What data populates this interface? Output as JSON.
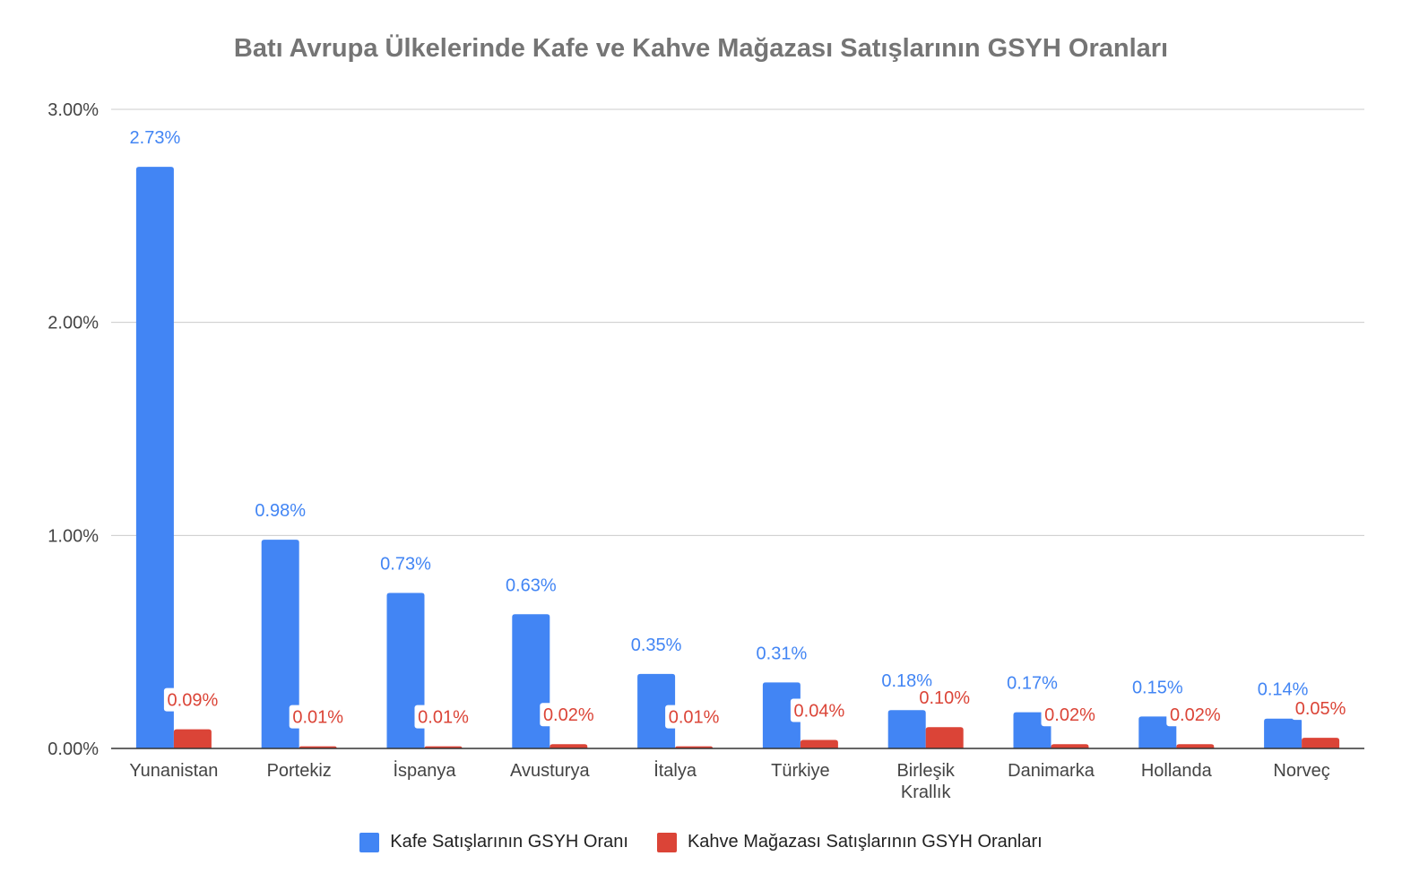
{
  "chart_data": {
    "type": "bar",
    "title": "Batı Avrupa Ülkelerinde Kafe ve Kahve Mağazası Satışlarının GSYH Oranları",
    "categories": [
      [
        "Yunanistan"
      ],
      [
        "Portekiz"
      ],
      [
        "İspanya"
      ],
      [
        "Avusturya"
      ],
      [
        "İtalya"
      ],
      [
        "Türkiye"
      ],
      [
        "Birleşik",
        "Krallık"
      ],
      [
        "Danimarka"
      ],
      [
        "Hollanda"
      ],
      [
        "Norveç"
      ]
    ],
    "series": [
      {
        "name": "Kafe Satışlarının GSYH Oranı",
        "color": "#4285f4",
        "values": [
          2.73,
          0.98,
          0.73,
          0.63,
          0.35,
          0.31,
          0.18,
          0.17,
          0.15,
          0.14
        ],
        "labels": [
          "2.73%",
          "0.98%",
          "0.73%",
          "0.63%",
          "0.35%",
          "0.31%",
          "0.18%",
          "0.17%",
          "0.15%",
          "0.14%"
        ]
      },
      {
        "name": "Kahve Mağazası Satışlarının GSYH Oranları",
        "color": "#db4437",
        "values": [
          0.09,
          0.01,
          0.01,
          0.02,
          0.01,
          0.04,
          0.1,
          0.02,
          0.02,
          0.05
        ],
        "labels": [
          "0.09%",
          "0.01%",
          "0.01%",
          "0.02%",
          "0.01%",
          "0.04%",
          "0.10%",
          "0.02%",
          "0.02%",
          "0.05%"
        ]
      }
    ],
    "ylim": [
      0,
      3
    ],
    "yticks": [
      0,
      1,
      2,
      3
    ],
    "ytick_labels": [
      "0.00%",
      "1.00%",
      "2.00%",
      "3.00%"
    ],
    "grid": true,
    "legend_position": "bottom"
  }
}
